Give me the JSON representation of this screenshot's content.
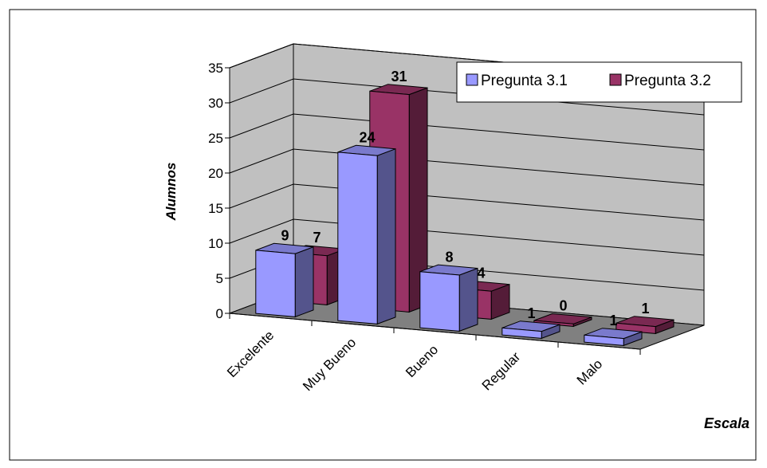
{
  "chart_data": {
    "type": "bar",
    "style": "3d-clustered",
    "categories": [
      "Excelente",
      "Muy Bueno",
      "Bueno",
      "Regular",
      "Malo"
    ],
    "series": [
      {
        "name": "Pregunta 3.1",
        "values": [
          9,
          24,
          8,
          1,
          1
        ],
        "color": "#9999ff"
      },
      {
        "name": "Pregunta 3.2",
        "values": [
          7,
          31,
          4,
          0,
          1
        ],
        "color": "#993366"
      }
    ],
    "xlabel": "Escala",
    "ylabel": "Alumnos",
    "ylim": [
      0,
      35
    ],
    "yticks": [
      "0",
      "5",
      "10",
      "15",
      "20",
      "25",
      "30",
      "35"
    ],
    "grid": true,
    "legend_position": "top-right",
    "colors": {
      "wall": "#c0c0c0",
      "floor": "#808080",
      "frame": "#000000",
      "background": "#ffffff"
    }
  }
}
